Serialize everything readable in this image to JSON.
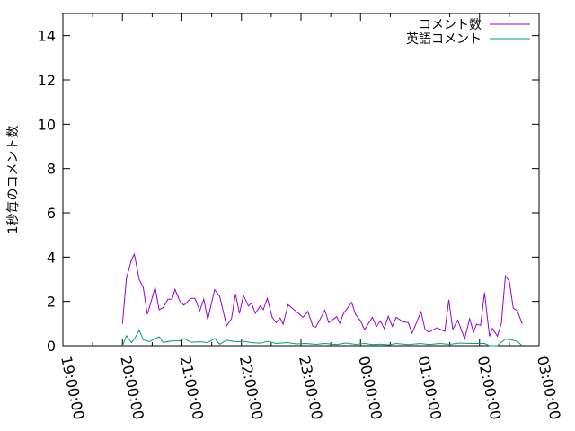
{
  "chart_data": {
    "type": "line",
    "title": "",
    "xlabel": "",
    "ylabel": "1秒毎のコメント数",
    "xlim": [
      "19:00:00",
      "03:00:00"
    ],
    "ylim": [
      0,
      15
    ],
    "x_ticks": [
      "19:00:00",
      "20:00:00",
      "21:00:00",
      "22:00:00",
      "23:00:00",
      "00:00:00",
      "01:00:00",
      "02:00:00",
      "03:00:00"
    ],
    "y_ticks": [
      0,
      2,
      4,
      6,
      8,
      10,
      12,
      14
    ],
    "grid": false,
    "legend_position": "top-right",
    "series": [
      {
        "name": "コメント数",
        "color": "#9400d3",
        "x": [
          "20:00",
          "20:04",
          "20:09",
          "20:12",
          "20:17",
          "20:21",
          "20:25",
          "20:27",
          "20:33",
          "20:37",
          "20:41",
          "20:46",
          "20:50",
          "20:53",
          "20:58",
          "21:02",
          "21:09",
          "21:13",
          "21:18",
          "21:22",
          "21:26",
          "21:33",
          "21:38",
          "21:45",
          "21:50",
          "21:54",
          "21:58",
          "22:02",
          "22:07",
          "22:10",
          "22:14",
          "22:19",
          "22:22",
          "22:26",
          "22:31",
          "22:35",
          "22:39",
          "22:42",
          "22:47",
          "22:55",
          "23:02",
          "23:07",
          "23:12",
          "23:15",
          "23:24",
          "23:28",
          "23:36",
          "23:39",
          "23:43",
          "23:51",
          "23:55",
          "24:00",
          "00:04",
          "00:12",
          "00:16",
          "00:20",
          "00:24",
          "00:28",
          "00:32",
          "00:36",
          "00:43",
          "00:48",
          "00:52",
          "01:01",
          "01:05",
          "01:09",
          "01:17",
          "01:25",
          "01:29",
          "01:33",
          "01:38",
          "01:45",
          "01:50",
          "01:54",
          "01:57",
          "02:01",
          "02:05",
          "02:10",
          "02:13",
          "02:18",
          "02:22",
          "02:26",
          "02:30",
          "02:34",
          "02:38",
          "02:43"
        ],
        "values": [
          0.99,
          3.04,
          3.86,
          4.13,
          2.98,
          2.64,
          1.42,
          1.7,
          2.64,
          1.62,
          1.72,
          2.1,
          2.1,
          2.54,
          2.0,
          1.83,
          2.14,
          2.14,
          1.58,
          2.1,
          1.18,
          2.53,
          2.23,
          0.9,
          1.22,
          2.34,
          1.45,
          2.27,
          1.79,
          1.92,
          1.46,
          1.8,
          1.62,
          2.14,
          1.28,
          1.04,
          1.25,
          0.97,
          1.85,
          1.55,
          1.28,
          1.55,
          0.88,
          0.84,
          1.6,
          1.04,
          1.31,
          1.01,
          1.46,
          1.96,
          1.42,
          1.12,
          0.72,
          1.28,
          0.85,
          1.12,
          0.77,
          1.33,
          0.88,
          1.28,
          1.08,
          1.04,
          0.57,
          1.53,
          0.74,
          0.61,
          0.81,
          0.65,
          2.07,
          0.74,
          1.15,
          0.31,
          1.22,
          0.61,
          0.97,
          0.92,
          2.39,
          0.43,
          0.78,
          0.43,
          1.01,
          3.15,
          2.91,
          1.69,
          1.58,
          0.99
        ]
      },
      {
        "name": "英語コメント",
        "color": "#009e73",
        "x": [
          "20:00",
          "20:04",
          "20:09",
          "20:12",
          "20:17",
          "20:21",
          "20:27",
          "20:33",
          "20:37",
          "20:41",
          "20:50",
          "20:58",
          "21:02",
          "21:09",
          "21:18",
          "21:26",
          "21:33",
          "21:38",
          "21:45",
          "21:54",
          "22:02",
          "22:10",
          "22:19",
          "22:26",
          "22:35",
          "22:47",
          "22:55",
          "23:05",
          "23:15",
          "23:24",
          "23:36",
          "23:45",
          "23:55",
          "00:04",
          "00:12",
          "00:20",
          "00:28",
          "00:36",
          "00:48",
          "01:01",
          "01:09",
          "01:20",
          "01:30",
          "01:40",
          "01:50",
          "02:00",
          "02:05",
          "02:10",
          "02:18",
          "02:26",
          "02:30",
          "02:38",
          "02:43"
        ],
        "values": [
          0.0,
          0.45,
          0.14,
          0.3,
          0.7,
          0.27,
          0.18,
          0.33,
          0.4,
          0.15,
          0.22,
          0.22,
          0.33,
          0.16,
          0.18,
          0.14,
          0.33,
          0.07,
          0.25,
          0.18,
          0.2,
          0.14,
          0.11,
          0.2,
          0.1,
          0.14,
          0.08,
          0.1,
          0.06,
          0.1,
          0.05,
          0.12,
          0.06,
          0.1,
          0.05,
          0.07,
          0.04,
          0.1,
          0.05,
          0.1,
          0.05,
          0.1,
          0.06,
          0.12,
          0.1,
          0.1,
          0.1,
          0.0,
          0.0,
          0.3,
          0.28,
          0.2,
          0.0
        ]
      }
    ]
  }
}
